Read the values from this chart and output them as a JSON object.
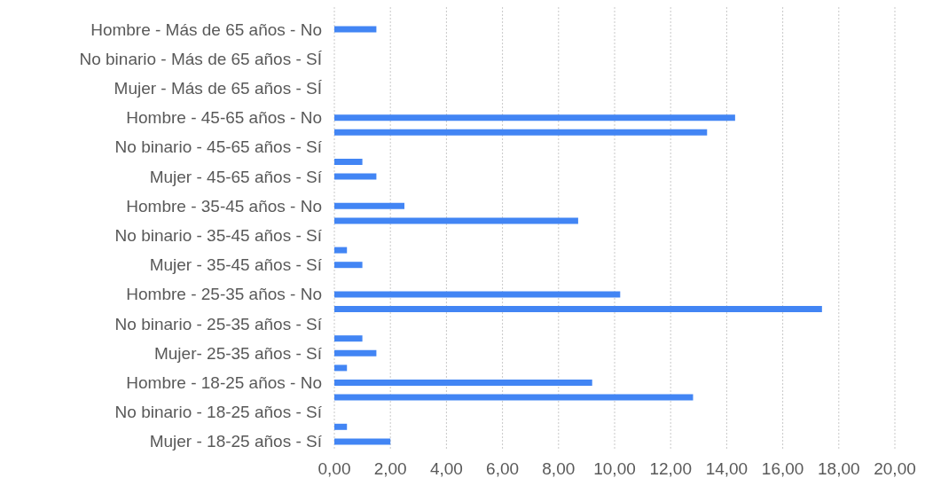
{
  "chart_data": {
    "type": "bar",
    "orientation": "horizontal",
    "categories": [
      null,
      "Hombre - Más de 65 años - No",
      null,
      "No binario - Más de 65 años - SÍ",
      null,
      "Mujer -  Más de 65 años - SÍ",
      null,
      "Hombre - 45-65 años - No",
      null,
      "No binario - 45-65 años - Sí",
      null,
      "Mujer - 45-65 años - Sí",
      null,
      "Hombre - 35-45 años - No",
      null,
      "No binario - 35-45 años - Sí",
      null,
      "Mujer - 35-45 años - Sí",
      null,
      "Hombre - 25-35 años - No",
      null,
      "No binario - 25-35 años - Sí",
      null,
      "Mujer- 25-35 años - Sí",
      null,
      "Hombre - 18-25 años - No",
      null,
      "No binario - 18-25 años - Sí",
      null,
      "Mujer - 18-25 años - Sí"
    ],
    "values": [
      null,
      1.5,
      null,
      null,
      null,
      null,
      null,
      14.3,
      13.3,
      null,
      1.0,
      1.5,
      null,
      2.5,
      8.7,
      null,
      0.45,
      1.0,
      null,
      10.2,
      17.4,
      null,
      1.0,
      1.5,
      0.45,
      9.2,
      12.8,
      null,
      0.45,
      2.0
    ],
    "color": "#4285f4",
    "xlim": [
      0,
      20
    ],
    "xticks": [
      {
        "value": 0,
        "label": "0,00"
      },
      {
        "value": 2,
        "label": "2,00"
      },
      {
        "value": 4,
        "label": "4,00"
      },
      {
        "value": 6,
        "label": "6,00"
      },
      {
        "value": 8,
        "label": "8,00"
      },
      {
        "value": 10,
        "label": "10,00"
      },
      {
        "value": 12,
        "label": "12,00"
      },
      {
        "value": 14,
        "label": "14,00"
      },
      {
        "value": 16,
        "label": "16,00"
      },
      {
        "value": 18,
        "label": "18,00"
      },
      {
        "value": 20,
        "label": "20,00"
      }
    ],
    "grid": "x"
  }
}
